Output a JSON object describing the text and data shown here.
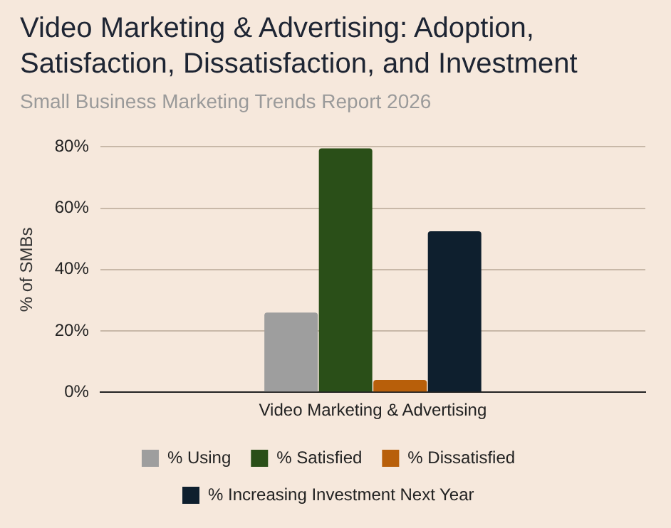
{
  "chart_data": {
    "type": "bar",
    "title": "Video Marketing & Advertising: Adoption, Satisfaction, Dissatisfaction, and Investment",
    "subtitle": "Small Business Marketing Trends Report 2026",
    "ylabel": "% of SMBs",
    "categories": [
      "Video Marketing & Advertising"
    ],
    "series": [
      {
        "name": "% Using",
        "color": "#9e9e9e",
        "values": [
          26
        ]
      },
      {
        "name": "% Satisfied",
        "color": "#2a4f18",
        "values": [
          79.5
        ]
      },
      {
        "name": "% Dissatisfied",
        "color": "#b85f0a",
        "values": [
          4
        ]
      },
      {
        "name": "% Increasing Investment Next Year",
        "color": "#0e1f2e",
        "values": [
          52.5
        ]
      }
    ],
    "ylim": [
      0,
      80
    ],
    "yticks": [
      {
        "value": 0,
        "label": "0%"
      },
      {
        "value": 20,
        "label": "20%"
      },
      {
        "value": 40,
        "label": "40%"
      },
      {
        "value": 60,
        "label": "60%"
      },
      {
        "value": 80,
        "label": "80%"
      }
    ],
    "grid": "y",
    "legend": "bottom"
  }
}
